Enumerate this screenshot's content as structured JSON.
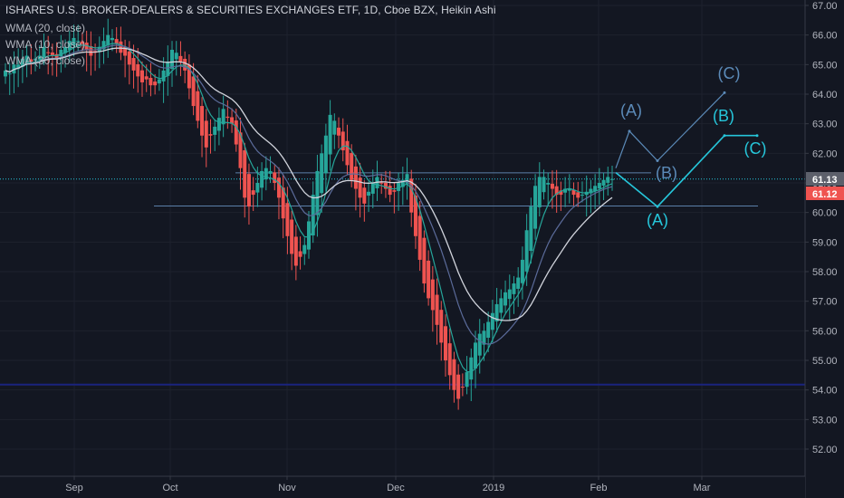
{
  "chart_data": {
    "type": "candlestick",
    "title": "ISHARES U.S. BROKER-DEALERS & SECURITIES EXCHANGES ETF, 1D, Cboe BZX, Heikin Ashi",
    "legend": [
      "WMA (20, close)",
      "WMA (10, close)",
      "WMA (30, close)"
    ],
    "price_axis": {
      "ticks": [
        "67.00",
        "66.00",
        "65.00",
        "64.00",
        "63.00",
        "62.00",
        "61.00",
        "60.00",
        "59.00",
        "58.00",
        "57.00",
        "56.00",
        "55.00",
        "54.00",
        "53.00",
        "52.00"
      ],
      "ylim": [
        51.5,
        67.2
      ]
    },
    "time_axis": {
      "ticks": [
        "Sep",
        "Oct",
        "Nov",
        "Dec",
        "2019",
        "Feb",
        "Mar"
      ]
    },
    "last_price_labels": [
      {
        "text": "61.13",
        "color": "#5d606b"
      },
      {
        "text": "61.12",
        "color": "#ef5350"
      }
    ],
    "candle_closes": [
      64.8,
      64.7,
      65.0,
      65.0,
      65.2,
      65.3,
      65.1,
      65.2,
      65.3,
      65.6,
      65.4,
      65.3,
      65.2,
      65.5,
      65.6,
      65.8,
      65.9,
      65.8,
      65.7,
      65.5,
      65.3,
      65.4,
      65.6,
      65.8,
      66.0,
      65.9,
      65.7,
      65.4,
      65.3,
      65.0,
      64.8,
      64.6,
      64.4,
      64.5,
      64.3,
      64.3,
      64.5,
      64.8,
      65.1,
      65.5,
      65.4,
      65.1,
      64.8,
      64.2,
      63.6,
      63.1,
      62.6,
      62.2,
      62.6,
      62.9,
      63.2,
      63.5,
      63.2,
      63.0,
      62.3,
      61.5,
      60.5,
      60.2,
      60.6,
      61.0,
      61.4,
      61.5,
      61.4,
      61.0,
      60.5,
      59.8,
      59.2,
      58.6,
      58.2,
      58.5,
      58.9,
      59.7,
      60.6,
      61.4,
      62.0,
      62.6,
      63.3,
      63.1,
      62.6,
      62.1,
      61.6,
      61.1,
      60.8,
      60.5,
      60.3,
      60.7,
      61.0,
      61.2,
      61.0,
      60.8,
      60.6,
      60.7,
      61.0,
      61.1,
      61.3,
      60.0,
      59.2,
      58.4,
      57.6,
      57.1,
      56.7,
      56.2,
      55.6,
      55.0,
      54.5,
      54.0,
      53.7,
      54.1,
      54.6,
      55.1,
      55.6,
      55.9,
      56.0,
      56.3,
      56.6,
      56.9,
      57.1,
      57.3,
      57.4,
      57.6,
      57.8,
      58.4,
      59.4,
      60.2,
      60.9,
      61.2,
      61.2,
      61.0,
      60.8,
      60.6,
      60.6,
      60.8,
      60.8,
      60.6,
      60.5,
      60.6,
      60.7,
      60.8,
      60.9,
      61.0,
      61.1,
      61.2,
      61.13
    ],
    "series": [
      {
        "name": "WMA (10, close)",
        "color": "#26a69a"
      },
      {
        "name": "WMA (20, close)",
        "color": "#5b6b9a"
      },
      {
        "name": "WMA (30, close)",
        "color": "#d1d4dc"
      }
    ],
    "horizontal_lines": [
      {
        "price": 61.34,
        "color": "#5b7fa8"
      },
      {
        "price": 60.22,
        "color": "#5b7fa8"
      },
      {
        "price": 61.13,
        "color": "#26c6da",
        "style": "dotted"
      },
      {
        "price": 54.18,
        "color": "#1a237e"
      }
    ],
    "wave_projections": [
      {
        "color": "#5b8ab8",
        "path": [
          [
            61.5,
            "2019-02-05"
          ],
          [
            62.75,
            "2019-02-07"
          ],
          [
            61.75,
            "2019-02-14"
          ],
          [
            64.05,
            "2019-02-27"
          ]
        ],
        "labels": [
          "(A)",
          "(B)",
          "(C)"
        ]
      },
      {
        "color": "#26c6da",
        "path": [
          [
            61.35,
            "2019-02-05"
          ],
          [
            60.2,
            "2019-02-14"
          ],
          [
            62.6,
            "2019-02-27"
          ],
          [
            62.6,
            "2019-03-04"
          ]
        ],
        "labels": [
          "(A)",
          "(B)",
          "(C)"
        ]
      }
    ]
  }
}
